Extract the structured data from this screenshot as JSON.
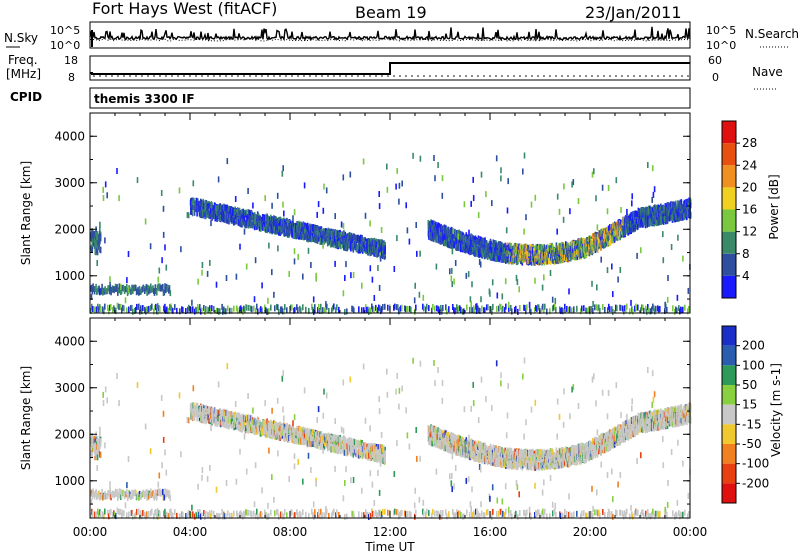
{
  "header": {
    "station": "Fort Hays West (fitACF)",
    "beam": "Beam 19",
    "date": "23/Jan/2011"
  },
  "noise_panel": {
    "left_label": "N.Sky",
    "left_ticks": [
      "10^5",
      "10^0"
    ],
    "right_label": "N.Search",
    "right_ticks": [
      "10^5",
      "10^0"
    ]
  },
  "freq_panel": {
    "left_label_1": "Freq.",
    "left_label_2": "[MHz]",
    "left_ticks": [
      "18",
      "8"
    ],
    "right_label": "Nave",
    "right_ticks": [
      "60",
      "0"
    ],
    "freq_step_time": "12:00"
  },
  "cpid_panel": {
    "label": "CPID",
    "mode": "themis 3300 IF"
  },
  "chart_data": [
    {
      "type": "heatmap",
      "name": "power",
      "ylabel": "Slant Range [km]",
      "ylim": [
        200,
        4500
      ],
      "yticks": [
        "1000",
        "2000",
        "3000",
        "4000"
      ],
      "xlabel": "Time UT",
      "xticks": [
        "00:00",
        "04:00",
        "08:00",
        "12:00",
        "16:00",
        "20:00",
        "00:00"
      ],
      "xlim_hours": [
        0,
        24
      ],
      "colorbar": {
        "label": "Power [dB]",
        "ticks": [
          "4",
          "8",
          "12",
          "16",
          "20",
          "24",
          "28"
        ],
        "colors": [
          "#1a1aff",
          "#2e4fa0",
          "#3a8a6a",
          "#7ac840",
          "#f0d020",
          "#f09020",
          "#e85010",
          "#e01010"
        ]
      },
      "features": [
        {
          "label": "early echo band",
          "t_start": 0.0,
          "t_end": 3.2,
          "range_km": 700
        },
        {
          "label": "descending band A",
          "t_start": 4.0,
          "t_end": 11.8,
          "range_start_km": 2500,
          "range_end_km": 1550
        },
        {
          "label": "arc band B",
          "t_start": 13.5,
          "t_end": 24.0,
          "range_start_km": 2000,
          "range_min_km": 1450,
          "range_end_km": 2450
        }
      ]
    },
    {
      "type": "heatmap",
      "name": "velocity",
      "ylabel": "Slant Range [km]",
      "ylim": [
        200,
        4500
      ],
      "yticks": [
        "1000",
        "2000",
        "3000",
        "4000"
      ],
      "xlabel": "Time UT",
      "xticks": [
        "00:00",
        "04:00",
        "08:00",
        "12:00",
        "16:00",
        "20:00",
        "00:00"
      ],
      "xlim_hours": [
        0,
        24
      ],
      "colorbar": {
        "label": "Velocity [m s-1]",
        "ticks": [
          "200",
          "100",
          "50",
          "15",
          "-15",
          "-50",
          "-100",
          "-200"
        ],
        "colors": [
          "#1a2fc8",
          "#2a5cb0",
          "#2e9a5a",
          "#88d040",
          "#c8c8c8",
          "#f0c830",
          "#f08020",
          "#e84010",
          "#e01010"
        ]
      }
    }
  ]
}
